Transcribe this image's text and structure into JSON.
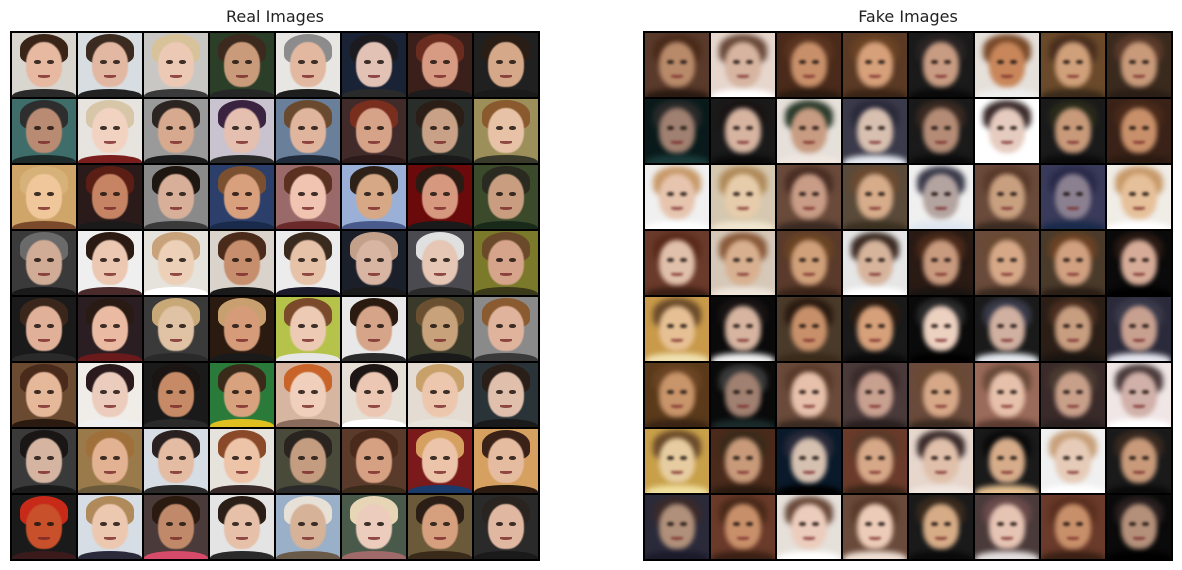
{
  "panels": {
    "real": {
      "title": "Real Images"
    },
    "fake": {
      "title": "Fake Images"
    }
  },
  "grid": {
    "rows": 8,
    "cols": 8
  },
  "real_palettes": [
    [
      "#d9d5cf",
      "#e6b9a0",
      "#3a2418",
      "#2a2a2a"
    ],
    [
      "#d8dde2",
      "#e3b8a2",
      "#3b2a1f",
      "#222222"
    ],
    [
      "#c9c7c3",
      "#ecc9b4",
      "#d8c29a",
      "#3a3a3a"
    ],
    [
      "#2b3e28",
      "#c99b7b",
      "#3d2a1e",
      "#262626"
    ],
    [
      "#e7e6e3",
      "#e3b8a1",
      "#8c8c8c",
      "#1e1e1e"
    ],
    [
      "#1a2336",
      "#e1c2b4",
      "#1b1b1f",
      "#2a2a2a"
    ],
    [
      "#3a1f1b",
      "#d79b84",
      "#6a2c1f",
      "#1c1c1c"
    ],
    [
      "#202020",
      "#d6a88a",
      "#2a1d15",
      "#1a1a1a"
    ],
    [
      "#3f6d6a",
      "#b98b72",
      "#2e2e2e",
      "#1d2a2a"
    ],
    [
      "#e7e3df",
      "#f2d3c2",
      "#d8c6a8",
      "#7a1d1d"
    ],
    [
      "#9a9a9a",
      "#d7a98e",
      "#2c2420",
      "#1c1c1c"
    ],
    [
      "#c8c3cf",
      "#e5bfb0",
      "#3a2340",
      "#2a2a2a"
    ],
    [
      "#6a7f9a",
      "#e0b59d",
      "#6a4a2e",
      "#1f2a3a"
    ],
    [
      "#402a2a",
      "#d6a389",
      "#7a2e1e",
      "#2c1a1a"
    ],
    [
      "#2a2e2a",
      "#c8a186",
      "#2a1e16",
      "#1a1a1a"
    ],
    [
      "#9c8f5a",
      "#e7c2a6",
      "#8a5a2e",
      "#3a3a2a"
    ],
    [
      "#cfa56a",
      "#f0c79a",
      "#d6b27a",
      "#7a4a2a"
    ],
    [
      "#2a1a1a",
      "#c68464",
      "#5a1e14",
      "#1a1a1a"
    ],
    [
      "#8a8a8a",
      "#d8b09a",
      "#1e1610",
      "#3a3a3a"
    ],
    [
      "#2c3f6a",
      "#d9a07e",
      "#7a5030",
      "#1a2a4a"
    ],
    [
      "#9a6a6a",
      "#f0c4b0",
      "#5a3020",
      "#6a2a2a"
    ],
    [
      "#9ab0d6",
      "#d6a886",
      "#2e2218",
      "#4a5a8a"
    ],
    [
      "#6a0a0a",
      "#d79880",
      "#2a1a14",
      "#1a1a1a"
    ],
    [
      "#3a4a2a",
      "#c99e80",
      "#2a2a20",
      "#1a2a1a"
    ],
    [
      "#3a3a3a",
      "#d0ac96",
      "#6a6a6a",
      "#1a1a1a"
    ],
    [
      "#efefef",
      "#ecc7b2",
      "#2a1a12",
      "#4a2a2a"
    ],
    [
      "#e6e2dc",
      "#ecd1b8",
      "#c8a27a",
      "#ffffff"
    ],
    [
      "#d9d3cc",
      "#c68e6c",
      "#4a2a1a",
      "#1a1a1a"
    ],
    [
      "#ececec",
      "#e6c2a8",
      "#3a2a1e",
      "#1a1a2a"
    ],
    [
      "#1a1f2a",
      "#d8b4a2",
      "#c2a08a",
      "#1a1a1a"
    ],
    [
      "#4a4a50",
      "#e6c6b4",
      "#e0e0e0",
      "#2a2a2a"
    ],
    [
      "#7a7a2a",
      "#d6a48a",
      "#6a4a2a",
      "#3a3a1a"
    ],
    [
      "#1a1a1a",
      "#e0b098",
      "#3a261a",
      "#2a2a2a"
    ],
    [
      "#2a1e22",
      "#eabba2",
      "#2a1a14",
      "#6a1a1a"
    ],
    [
      "#3a3a3a",
      "#e0c2a4",
      "#c9a878",
      "#2a2a2a"
    ],
    [
      "#2a1a10",
      "#d69c7a",
      "#c8a070",
      "#1a1a1a"
    ],
    [
      "#b6c34a",
      "#eccab4",
      "#7a4a2a",
      "#e6e6e6"
    ],
    [
      "#e8e8e8",
      "#d6a488",
      "#2a1a10",
      "#2a2a2a"
    ],
    [
      "#3a3a2a",
      "#c8a27a",
      "#6a5030",
      "#1a1a1a"
    ],
    [
      "#8a8a8a",
      "#e0b49c",
      "#8a5a30",
      "#3a3a3a"
    ],
    [
      "#6a4a30",
      "#e6b89a",
      "#4a2a1a",
      "#2a1a10"
    ],
    [
      "#f0ece8",
      "#ecccbc",
      "#2a1a1e",
      "#f0f0f0"
    ],
    [
      "#1a1a1a",
      "#c68a66",
      "#1a1412",
      "#2a2a2a"
    ],
    [
      "#2a7a3a",
      "#d9a27e",
      "#3a2a1a",
      "#e0c020"
    ],
    [
      "#d6b6a0",
      "#f0d0bc",
      "#c8642a",
      "#8a6a5a"
    ],
    [
      "#e6dfd6",
      "#ecc8b4",
      "#1e1614",
      "#ffffff"
    ],
    [
      "#e4dcd2",
      "#ecc7ae",
      "#c8a06a",
      "#e8e4dc"
    ],
    [
      "#2a3438",
      "#e0c0ac",
      "#2a1e18",
      "#1a1a1a"
    ],
    [
      "#3a3a3a",
      "#d6b4a2",
      "#1a1616",
      "#1a1a1a"
    ],
    [
      "#9a7a4a",
      "#e2b292",
      "#a0703a",
      "#6a5a3a"
    ],
    [
      "#d6dde4",
      "#e4bca4",
      "#2a2020",
      "#2a2a2a"
    ],
    [
      "#e6e2dc",
      "#eec4a8",
      "#8a4a2a",
      "#3a2a2a"
    ],
    [
      "#4a4a3a",
      "#c49c80",
      "#2a2420",
      "#2a2a2a"
    ],
    [
      "#5a3a2a",
      "#d6a082",
      "#4a2a1a",
      "#3a2a1a"
    ],
    [
      "#7a1a1a",
      "#ecc4aa",
      "#d6a060",
      "#1a3a6a"
    ],
    [
      "#d6a060",
      "#e6bca0",
      "#3a2218",
      "#2a1a10"
    ],
    [
      "#1a1a1a",
      "#c8502a",
      "#c82a1a",
      "#3a1a1a"
    ],
    [
      "#d6dde4",
      "#ecc8b0",
      "#b08a5a",
      "#2a2a3a"
    ],
    [
      "#4a3a3a",
      "#c08a6a",
      "#2a1a10",
      "#d64a6a"
    ],
    [
      "#e4e4e4",
      "#e6c0a8",
      "#2a1e16",
      "#2a2a2a"
    ],
    [
      "#9ab0c8",
      "#d6b298",
      "#e6e0d6",
      "#6a5a4a"
    ],
    [
      "#4a5a4a",
      "#ecccbc",
      "#e6d6b6",
      "#a06a6a"
    ],
    [
      "#6a5a3a",
      "#d6a07e",
      "#2a1e16",
      "#3a2a1a"
    ],
    [
      "#2a2a2a",
      "#e0b8a2",
      "#2a2420",
      "#1a1a1a"
    ]
  ],
  "fake_palettes": [
    [
      "#5a3a2a",
      "#b88a6a",
      "#4a2a1a",
      "#2a1a12"
    ],
    [
      "#e6d6cc",
      "#d6b4a0",
      "#6a4a3a",
      "#ffffff"
    ],
    [
      "#4a2a1a",
      "#c8906a",
      "#5a3420",
      "#2a1a10"
    ],
    [
      "#5a3a24",
      "#d6a07a",
      "#6a4224",
      "#3a2416"
    ],
    [
      "#1a1a1a",
      "#c89c82",
      "#2a2424",
      "#0a0a0a"
    ],
    [
      "#e6e0da",
      "#c8865a",
      "#7a4a2a",
      "#f0f0f0"
    ],
    [
      "#6a4a2a",
      "#d0a07a",
      "#4a2e1e",
      "#3a2a1a"
    ],
    [
      "#3a2a1e",
      "#c89a7a",
      "#5a3a2a",
      "#2a1e16"
    ],
    [
      "#0a1a1a",
      "#a08070",
      "#2a2a2a",
      "#1a3a3a"
    ],
    [
      "#1a1a1a",
      "#d6b4a0",
      "#1a1414",
      "#0a0a0a"
    ],
    [
      "#e6e0da",
      "#c89c82",
      "#2a3a2a",
      "#f0e6e0"
    ],
    [
      "#3a3a4a",
      "#d8c0b0",
      "#2a2a3a",
      "#e6eaf0"
    ],
    [
      "#1a1a1a",
      "#b48c76",
      "#3a2a22",
      "#0a0a0a"
    ],
    [
      "#ffffff",
      "#e6ccc0",
      "#3a2a2a",
      "#ffffff"
    ],
    [
      "#1a1a1a",
      "#c89a7a",
      "#2a2a1a",
      "#0a0a0a"
    ],
    [
      "#3a2218",
      "#c8906a",
      "#4a2a1a",
      "#2a1a10"
    ],
    [
      "#f0f0f0",
      "#e6c4ae",
      "#c89a6a",
      "#ffffff"
    ],
    [
      "#d6c8b0",
      "#e6ccaa",
      "#b08a5a",
      "#f0e6d0"
    ],
    [
      "#6a4a3a",
      "#c89c86",
      "#4a2e24",
      "#3a2a22"
    ],
    [
      "#5a4a3a",
      "#d6ac8a",
      "#6a4a30",
      "#3a3020"
    ],
    [
      "#f0f0f0",
      "#b4a4a0",
      "#3a3a4a",
      "#dde6f0"
    ],
    [
      "#6a4a3a",
      "#c8a080",
      "#5a3a2a",
      "#3a2a20"
    ],
    [
      "#3a3a5a",
      "#8a8090",
      "#2a2a4a",
      "#1a2a4a"
    ],
    [
      "#f0ece6",
      "#e6c09a",
      "#c89a6a",
      "#ffffff"
    ],
    [
      "#6a3a2a",
      "#e0c0aa",
      "#5a2a1a",
      "#3a1e14"
    ],
    [
      "#d6c8b8",
      "#d8b090",
      "#8a5a3a",
      "#f0e6dc"
    ],
    [
      "#5a3a2a",
      "#d0a07a",
      "#6a4424",
      "#3a2418"
    ],
    [
      "#e6e6e6",
      "#d6b49c",
      "#3a2a22",
      "#ffffff"
    ],
    [
      "#2a1a14",
      "#c89a7e",
      "#4a2a1a",
      "#1a1410"
    ],
    [
      "#6a4a3a",
      "#d6a888",
      "#6a4a32",
      "#3a2a20"
    ],
    [
      "#4a3a2a",
      "#d0a080",
      "#6a4224",
      "#2a1e16"
    ],
    [
      "#0a0a0a",
      "#d6ac98",
      "#2a1a14",
      "#000000"
    ],
    [
      "#c89a4a",
      "#e6c094",
      "#6a4a2a",
      "#f0e0b0"
    ],
    [
      "#0a0a0a",
      "#d6b4a0",
      "#1a1414",
      "#f0f0f0"
    ],
    [
      "#4a3a2a",
      "#c8906a",
      "#2a1a10",
      "#3a2a1a"
    ],
    [
      "#1a1a1a",
      "#d6a07a",
      "#2a1a10",
      "#0a0a0a"
    ],
    [
      "#0a0a0a",
      "#ecd0c0",
      "#2a2a2a",
      "#000000"
    ],
    [
      "#1a1a1a",
      "#d0b0a0",
      "#3a3a4a",
      "#e6eaf0"
    ],
    [
      "#2a1e16",
      "#c89e80",
      "#4a2e20",
      "#1a1410"
    ],
    [
      "#2a2a3a",
      "#c8a090",
      "#3a3a4a",
      "#e6e6f0"
    ],
    [
      "#5a3a1a",
      "#c8946a",
      "#6a4424",
      "#3a2414"
    ],
    [
      "#0a0a0a",
      "#a08070",
      "#3a3a3a",
      "#1a2a2a"
    ],
    [
      "#6a4a3a",
      "#e6c0aa",
      "#5a3a2a",
      "#3a2a22"
    ],
    [
      "#4a3a3a",
      "#c8a090",
      "#3a2a2a",
      "#2a2020"
    ],
    [
      "#6a4a3a",
      "#d6a888",
      "#6a4a32",
      "#3a2a20"
    ],
    [
      "#9a6a5a",
      "#e6c0aa",
      "#6a4a3a",
      "#5a3a30"
    ],
    [
      "#3a2a2a",
      "#c8a08a",
      "#4a3a30",
      "#2a2020"
    ],
    [
      "#f0e6e6",
      "#d0b0a8",
      "#4a3a3a",
      "#ffffff"
    ],
    [
      "#c8a04a",
      "#e6cca0",
      "#6a4a2a",
      "#f0e0a0"
    ],
    [
      "#4a2a1a",
      "#c89a7a",
      "#3a2a1a",
      "#2a1a10"
    ],
    [
      "#0a1a2a",
      "#d6c0b0",
      "#2a2a3a",
      "#000000"
    ],
    [
      "#6a3a2a",
      "#d6a888",
      "#5a3a2a",
      "#3a2418"
    ],
    [
      "#e6d6cc",
      "#e0c0aa",
      "#3a2a2a",
      "#f0e6e0"
    ],
    [
      "#1a1a1a",
      "#d6ac8a",
      "#0a0a0a",
      "#e6c090"
    ],
    [
      "#f0f0f0",
      "#e6ccb8",
      "#c8a07a",
      "#ffffff"
    ],
    [
      "#1a1a1a",
      "#c89a7a",
      "#3a2a20",
      "#0a0a0a"
    ],
    [
      "#2a2a3a",
      "#b0907a",
      "#3a2a2a",
      "#1a1a2a"
    ],
    [
      "#6a3a2a",
      "#c8906a",
      "#4a2a1a",
      "#3a2014"
    ],
    [
      "#e6e0da",
      "#ecccbc",
      "#6a4a3a",
      "#ffffff"
    ],
    [
      "#6a4a3a",
      "#ecccb8",
      "#5a3a2a",
      "#f0e0d6"
    ],
    [
      "#1a1a1a",
      "#d6ac86",
      "#3a2a1e",
      "#0a0a0a"
    ],
    [
      "#4a3a3a",
      "#e6c4b4",
      "#6a4a4a",
      "#e6e0e0"
    ],
    [
      "#6a3a2a",
      "#c8906a",
      "#5a3020",
      "#3a2014"
    ],
    [
      "#0a0a0a",
      "#b4907a",
      "#2a2020",
      "#000000"
    ]
  ]
}
